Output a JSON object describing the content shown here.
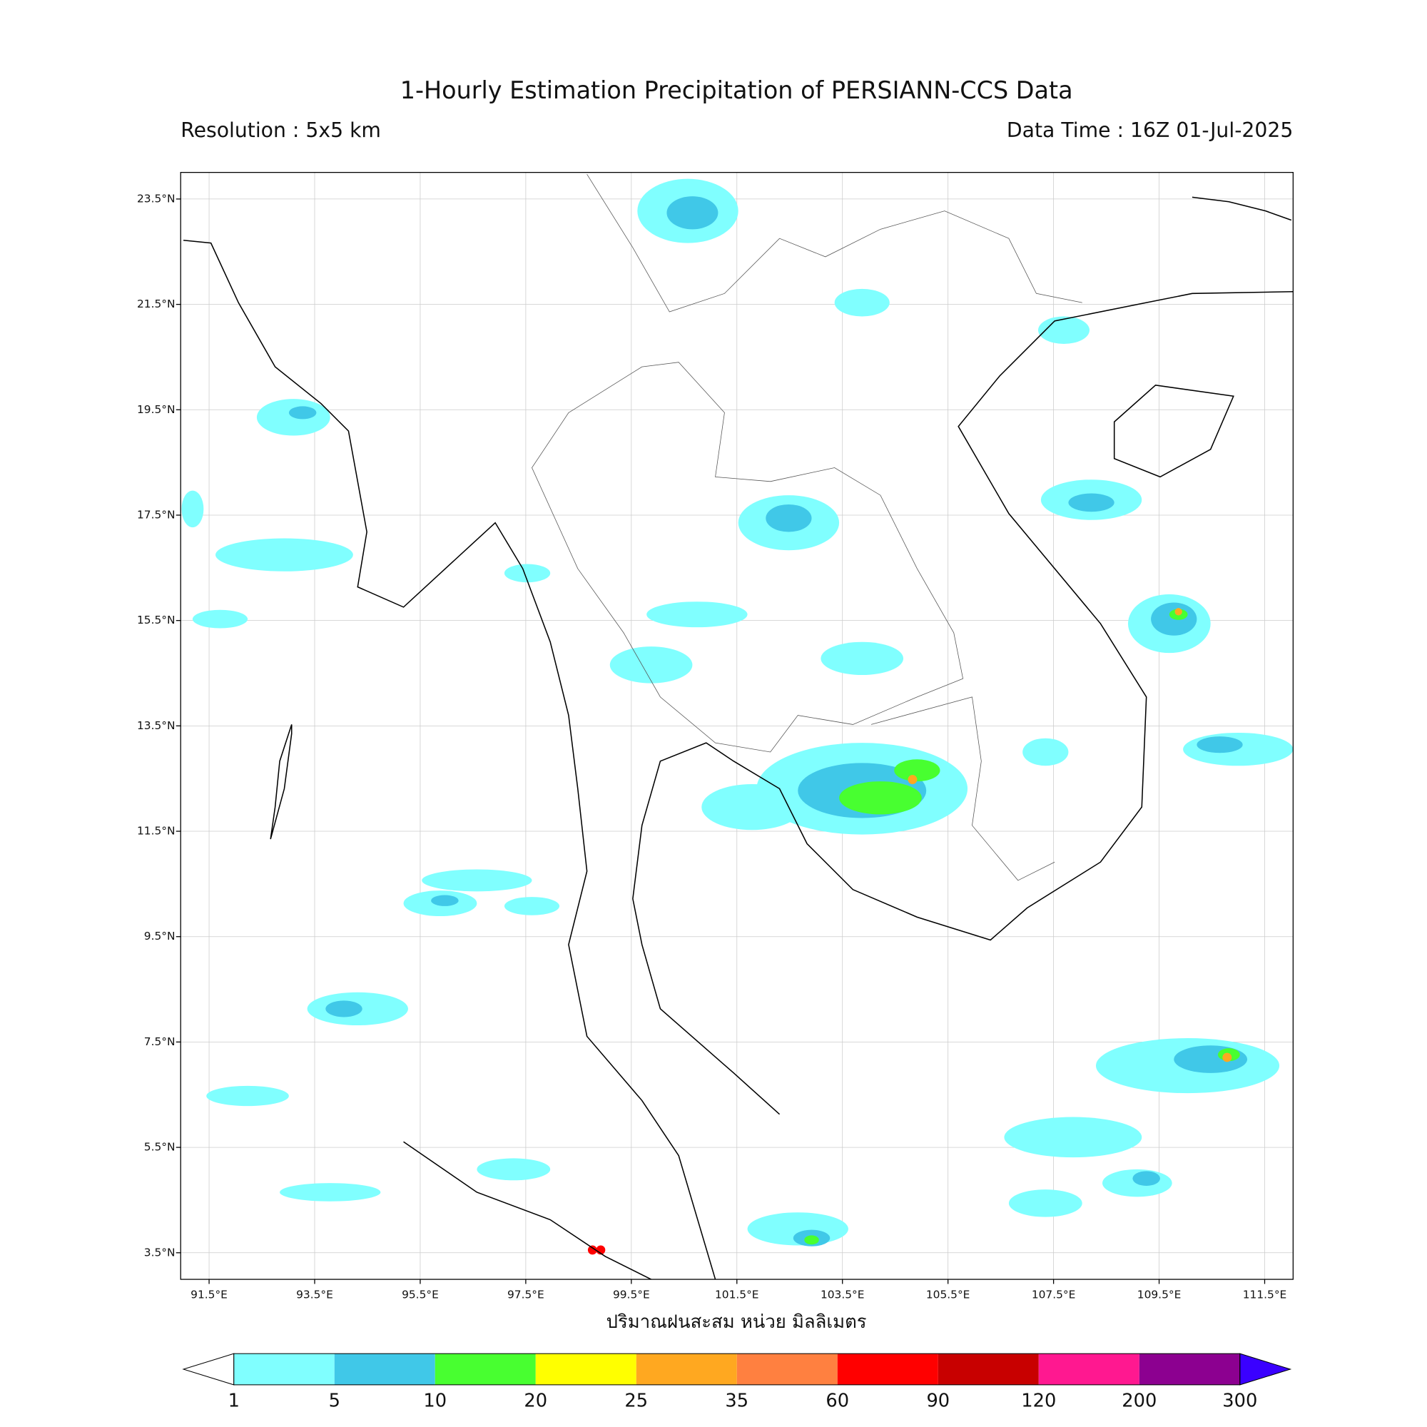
{
  "header": {
    "title": "1-Hourly Estimation Precipitation of PERSIANN-CCS Data",
    "resolution": "Resolution : 5x5 km",
    "data_time": "Data Time : 16Z 01-Jul-2025"
  },
  "map": {
    "lat_labels": [
      "23.5°N",
      "21.5°N",
      "19.5°N",
      "17.5°N",
      "15.5°N",
      "13.5°N",
      "11.5°N",
      "9.5°N",
      "7.5°N",
      "5.5°N",
      "3.5°N"
    ],
    "lon_labels": [
      "91.5°E",
      "93.5°E",
      "95.5°E",
      "97.5°E",
      "99.5°E",
      "101.5°E",
      "103.5°E",
      "105.5°E",
      "107.5°E",
      "109.5°E",
      "111.5°E"
    ],
    "axis_label": "ปริมาณฝนสะสม หน่วย มิลลิเมตร"
  },
  "colorbar": {
    "levels": [
      1,
      5,
      10,
      20,
      25,
      35,
      60,
      90,
      120,
      200,
      300
    ],
    "colors": [
      "#80ffff",
      "#40c8e8",
      "#48ff30",
      "#ffff00",
      "#ffa820",
      "#ff8040",
      "#ff0000",
      "#c80000",
      "#ff1890",
      "#8c0090",
      "#3a00ff"
    ]
  }
}
